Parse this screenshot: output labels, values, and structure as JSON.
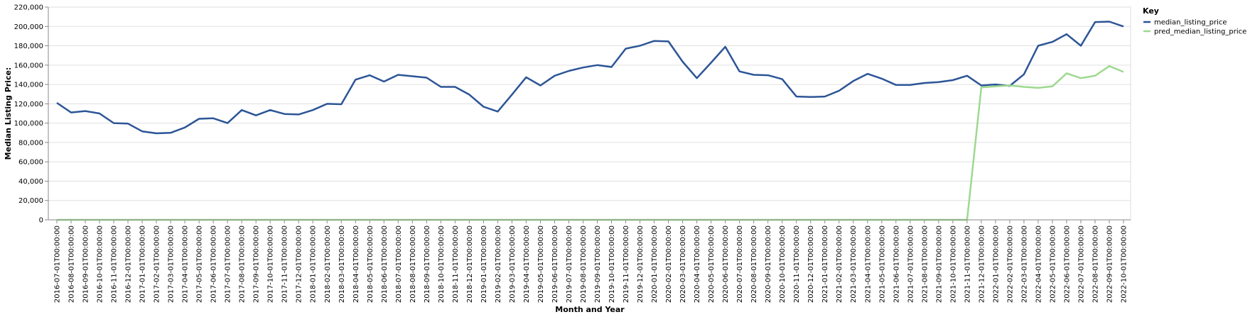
{
  "chart_data": {
    "type": "line",
    "xlabel": "Month and Year",
    "ylabel": "Median Listing Price:",
    "ylim": [
      0,
      220000
    ],
    "yticks": [
      0,
      20000,
      40000,
      60000,
      80000,
      100000,
      120000,
      140000,
      160000,
      180000,
      200000,
      220000
    ],
    "ytick_labels": [
      "0",
      "20,000",
      "40,000",
      "60,000",
      "80,000",
      "100,000",
      "120,000",
      "140,000",
      "160,000",
      "180,000",
      "200,000",
      "220,000"
    ],
    "grid": true,
    "legend": {
      "title": "Key",
      "placement": "top-right"
    },
    "x": [
      "2016-07-01T00:00:00",
      "2016-08-01T00:00:00",
      "2016-09-01T00:00:00",
      "2016-10-01T00:00:00",
      "2016-11-01T00:00:00",
      "2016-12-01T00:00:00",
      "2017-01-01T00:00:00",
      "2017-02-01T00:00:00",
      "2017-03-01T00:00:00",
      "2017-04-01T00:00:00",
      "2017-05-01T00:00:00",
      "2017-06-01T00:00:00",
      "2017-07-01T00:00:00",
      "2017-08-01T00:00:00",
      "2017-09-01T00:00:00",
      "2017-10-01T00:00:00",
      "2017-11-01T00:00:00",
      "2017-12-01T00:00:00",
      "2018-01-01T00:00:00",
      "2018-02-01T00:00:00",
      "2018-03-01T00:00:00",
      "2018-04-01T00:00:00",
      "2018-05-01T00:00:00",
      "2018-06-01T00:00:00",
      "2018-07-01T00:00:00",
      "2018-08-01T00:00:00",
      "2018-09-01T00:00:00",
      "2018-10-01T00:00:00",
      "2018-11-01T00:00:00",
      "2018-12-01T00:00:00",
      "2019-01-01T00:00:00",
      "2019-02-01T00:00:00",
      "2019-03-01T00:00:00",
      "2019-04-01T00:00:00",
      "2019-05-01T00:00:00",
      "2019-06-01T00:00:00",
      "2019-07-01T00:00:00",
      "2019-08-01T00:00:00",
      "2019-09-01T00:00:00",
      "2019-10-01T00:00:00",
      "2019-11-01T00:00:00",
      "2019-12-01T00:00:00",
      "2020-01-01T00:00:00",
      "2020-02-01T00:00:00",
      "2020-03-01T00:00:00",
      "2020-04-01T00:00:00",
      "2020-05-01T00:00:00",
      "2020-06-01T00:00:00",
      "2020-07-01T00:00:00",
      "2020-08-01T00:00:00",
      "2020-09-01T00:00:00",
      "2020-10-01T00:00:00",
      "2020-11-01T00:00:00",
      "2020-12-01T00:00:00",
      "2021-01-01T00:00:00",
      "2021-02-01T00:00:00",
      "2021-03-01T00:00:00",
      "2021-04-01T00:00:00",
      "2021-05-01T00:00:00",
      "2021-06-01T00:00:00",
      "2021-07-01T00:00:00",
      "2021-08-01T00:00:00",
      "2021-09-01T00:00:00",
      "2021-10-01T00:00:00",
      "2021-11-01T00:00:00",
      "2021-12-01T00:00:00",
      "2022-01-01T00:00:00",
      "2022-02-01T00:00:00",
      "2022-03-01T00:00:00",
      "2022-04-01T00:00:00",
      "2022-05-01T00:00:00",
      "2022-06-01T00:00:00",
      "2022-07-01T00:00:00",
      "2022-08-01T00:00:00",
      "2022-09-01T00:00:00",
      "2022-10-01T00:00:00"
    ],
    "series": [
      {
        "name": "median_listing_price",
        "color": "#2c5596",
        "values": [
          121000,
          111000,
          112500,
          110000,
          100000,
          99500,
          91500,
          89500,
          90000,
          95500,
          104500,
          105000,
          100000,
          113500,
          108000,
          113500,
          109500,
          109000,
          113500,
          120000,
          119500,
          145000,
          149500,
          143000,
          150000,
          148500,
          147000,
          137500,
          137500,
          129500,
          117000,
          112000,
          129500,
          147500,
          139000,
          149000,
          154000,
          157500,
          160000,
          158000,
          177000,
          180000,
          185000,
          184500,
          163500,
          146500,
          162500,
          179000,
          153500,
          150000,
          149500,
          145500,
          127500,
          127000,
          127500,
          133500,
          143500,
          151000,
          146000,
          139500,
          139500,
          141500,
          142500,
          144500,
          149000,
          139000,
          140000,
          138500,
          150500,
          180000,
          184000,
          192000,
          180000,
          204500,
          205000,
          200000
        ]
      },
      {
        "name": "pred_median_listing_price",
        "color": "#9ed98f",
        "values": [
          0,
          0,
          0,
          0,
          0,
          0,
          0,
          0,
          0,
          0,
          0,
          0,
          0,
          0,
          0,
          0,
          0,
          0,
          0,
          0,
          0,
          0,
          0,
          0,
          0,
          0,
          0,
          0,
          0,
          0,
          0,
          0,
          0,
          0,
          0,
          0,
          0,
          0,
          0,
          0,
          0,
          0,
          0,
          0,
          0,
          0,
          0,
          0,
          0,
          0,
          0,
          0,
          0,
          0,
          0,
          0,
          0,
          0,
          0,
          0,
          0,
          0,
          0,
          0,
          0,
          137000,
          138000,
          139000,
          137500,
          136500,
          138000,
          151500,
          146500,
          149000,
          159000,
          153000
        ]
      }
    ]
  }
}
